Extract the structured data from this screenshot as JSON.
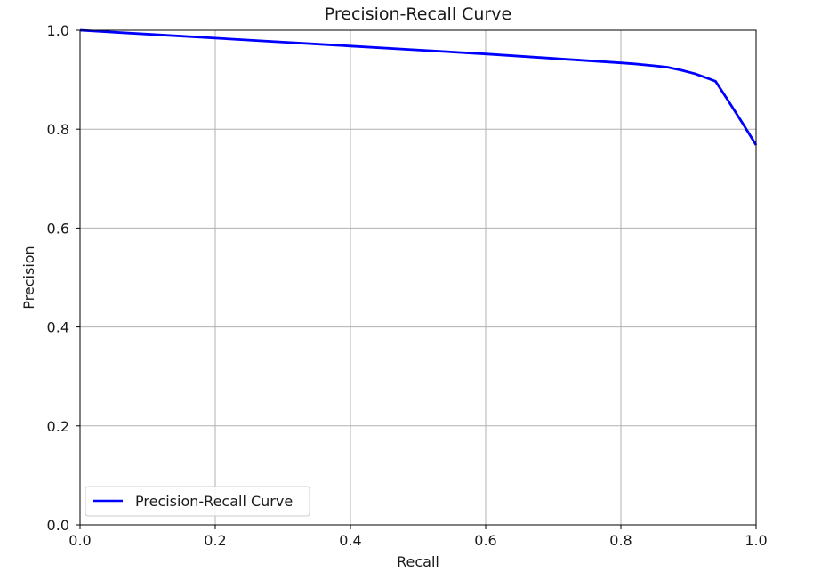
{
  "chart_data": {
    "type": "line",
    "title": "Precision-Recall Curve",
    "xlabel": "Recall",
    "ylabel": "Precision",
    "xlim": [
      0.0,
      1.0
    ],
    "ylim": [
      0.0,
      1.0
    ],
    "xticks": [
      0.0,
      0.2,
      0.4,
      0.6,
      0.8,
      1.0
    ],
    "yticks": [
      0.0,
      0.2,
      0.4,
      0.6,
      0.8,
      1.0
    ],
    "xtick_labels": [
      "0.0",
      "0.2",
      "0.4",
      "0.6",
      "0.8",
      "1.0"
    ],
    "ytick_labels": [
      "0.0",
      "0.2",
      "0.4",
      "0.6",
      "0.8",
      "1.0"
    ],
    "grid": true,
    "legend": {
      "placement": "lower-left",
      "entries": [
        "Precision-Recall Curve"
      ]
    },
    "series": [
      {
        "name": "Precision-Recall Curve",
        "color": "#0000ff",
        "x": [
          0.0,
          0.1,
          0.2,
          0.3,
          0.4,
          0.5,
          0.6,
          0.7,
          0.8,
          0.82,
          0.85,
          0.87,
          0.89,
          0.91,
          0.93,
          0.94,
          0.96,
          0.98,
          1.0
        ],
        "y": [
          1.0,
          0.992,
          0.984,
          0.976,
          0.968,
          0.96,
          0.952,
          0.943,
          0.934,
          0.932,
          0.928,
          0.925,
          0.919,
          0.912,
          0.902,
          0.897,
          0.855,
          0.812,
          0.768
        ]
      }
    ]
  }
}
